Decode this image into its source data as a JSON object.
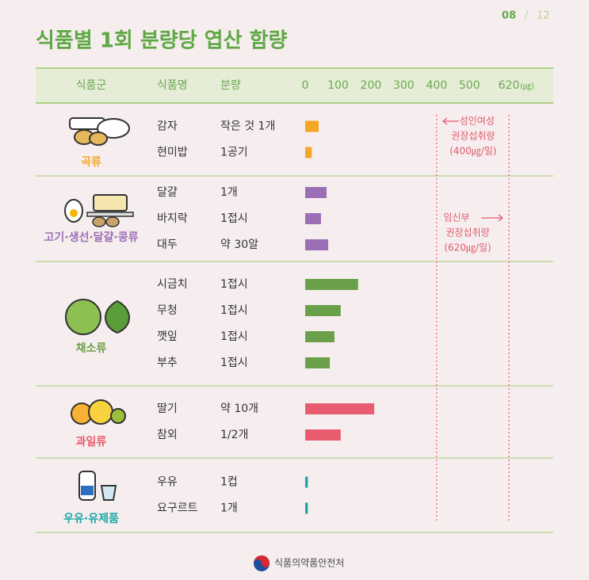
{
  "page": {
    "number": "08",
    "separator": "/",
    "total": "12",
    "footer": "식품의약품안전처"
  },
  "chart_data": {
    "type": "bar",
    "orientation": "horizontal",
    "title": "식품별 1회 분량당 엽산 함량",
    "columns": [
      "식품군",
      "식품명",
      "분량"
    ],
    "unit": "(㎍)",
    "xlim": [
      0,
      620
    ],
    "xticks": [
      0,
      100,
      200,
      300,
      400,
      500,
      620
    ],
    "groups": [
      {
        "name": "곡류",
        "color": "#f5a623",
        "categories": [
          "감자",
          "현미밥"
        ],
        "portions": [
          "작은 것 1개",
          "1공기"
        ],
        "values": [
          41,
          20
        ]
      },
      {
        "name": "고기·생선·달걀·콩류",
        "color": "#9b6fb5",
        "categories": [
          "달걀",
          "바지락",
          "대두"
        ],
        "portions": [
          "1개",
          "1접시",
          "약 30알"
        ],
        "values": [
          65,
          48,
          70
        ]
      },
      {
        "name": "채소류",
        "color": "#6aa04a",
        "categories": [
          "시금치",
          "무청",
          "깻잎",
          "부추"
        ],
        "portions": [
          "1접시",
          "1접시",
          "1접시",
          "1접시"
        ],
        "values": [
          161,
          108,
          89,
          75
        ]
      },
      {
        "name": "과일류",
        "color": "#e95b6e",
        "categories": [
          "딸기",
          "참외"
        ],
        "portions": [
          "약 10개",
          "1/2개"
        ],
        "values": [
          210,
          108
        ]
      },
      {
        "name": "우유·유제품",
        "color": "#1aa6a8",
        "categories": [
          "우유",
          "요구르트"
        ],
        "portions": [
          "1컵",
          "1개"
        ],
        "values": [
          8,
          8
        ]
      }
    ],
    "annotations": [
      {
        "value": 400,
        "lines": [
          "성인여성",
          "권장섭취량",
          "(400㎍/일)"
        ]
      },
      {
        "value": 620,
        "lines": [
          "임신부",
          "권장섭취량",
          "(620㎍/일)"
        ]
      }
    ]
  }
}
